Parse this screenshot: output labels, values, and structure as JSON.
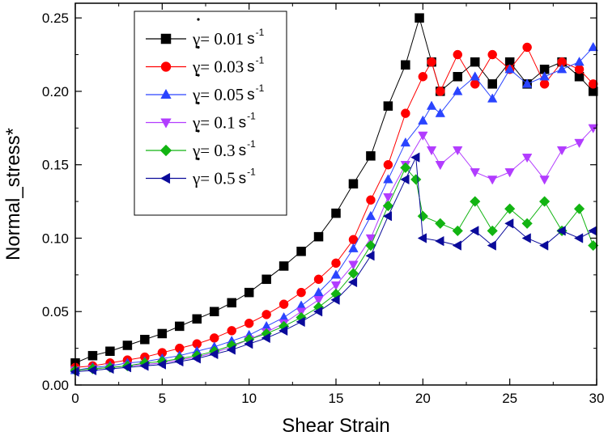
{
  "chart_data": {
    "type": "scatter",
    "xlabel": "Shear Strain",
    "ylabel": "Normal_stress*",
    "xlim": [
      0,
      30
    ],
    "ylim": [
      0,
      0.26
    ],
    "x_ticks": [
      "0",
      "5",
      "10",
      "15",
      "20",
      "25",
      "30"
    ],
    "y_ticks": [
      "0.00",
      "0.05",
      "0.10",
      "0.15",
      "0.20",
      "0.25"
    ],
    "x_tick_values": [
      0,
      5,
      10,
      15,
      20,
      25,
      30
    ],
    "y_tick_values": [
      0,
      0.05,
      0.1,
      0.15,
      0.2,
      0.25
    ],
    "legend_position": "top-left",
    "grid": false,
    "series": [
      {
        "name": "γ = 0.01 s-1",
        "rate": "0.01",
        "unit": "s",
        "exp": "-1",
        "color": "#000000",
        "marker": "square",
        "x": [
          0,
          1,
          2,
          3,
          4,
          5,
          6,
          7,
          8,
          9,
          10,
          11,
          12,
          13,
          14,
          15,
          16,
          17,
          18,
          19,
          19.8,
          20.5,
          21,
          22,
          23,
          24,
          25,
          26,
          27,
          28,
          29,
          29.8
        ],
        "y": [
          0.015,
          0.02,
          0.023,
          0.027,
          0.031,
          0.035,
          0.04,
          0.045,
          0.05,
          0.056,
          0.063,
          0.072,
          0.081,
          0.091,
          0.101,
          0.117,
          0.137,
          0.156,
          0.19,
          0.218,
          0.25,
          0.22,
          0.2,
          0.21,
          0.22,
          0.205,
          0.22,
          0.205,
          0.215,
          0.22,
          0.21,
          0.2
        ]
      },
      {
        "name": "γ = 0.03 s-1",
        "rate": "0.03",
        "unit": "s",
        "exp": "-1",
        "color": "#ff0000",
        "marker": "circle",
        "x": [
          0,
          1,
          2,
          3,
          4,
          5,
          6,
          7,
          8,
          9,
          10,
          11,
          12,
          13,
          14,
          15,
          16,
          17,
          18,
          19,
          20,
          20.5,
          21,
          22,
          23,
          24,
          25,
          26,
          27,
          28,
          29,
          29.8
        ],
        "y": [
          0.012,
          0.013,
          0.015,
          0.017,
          0.019,
          0.022,
          0.025,
          0.028,
          0.032,
          0.037,
          0.042,
          0.048,
          0.055,
          0.063,
          0.072,
          0.083,
          0.099,
          0.126,
          0.15,
          0.185,
          0.21,
          0.22,
          0.2,
          0.225,
          0.205,
          0.225,
          0.215,
          0.23,
          0.205,
          0.22,
          0.215,
          0.205
        ]
      },
      {
        "name": "γ = 0.05 s-1",
        "rate": "0.05",
        "unit": "s",
        "exp": "-1",
        "color": "#2a44ff",
        "marker": "triangle-up",
        "x": [
          0,
          1,
          2,
          3,
          4,
          5,
          6,
          7,
          8,
          9,
          10,
          11,
          12,
          13,
          14,
          15,
          16,
          17,
          18,
          19,
          20,
          20.5,
          21,
          22,
          23,
          24,
          25,
          26,
          27,
          28,
          29,
          29.8
        ],
        "y": [
          0.01,
          0.012,
          0.013,
          0.015,
          0.016,
          0.018,
          0.02,
          0.023,
          0.026,
          0.03,
          0.034,
          0.04,
          0.046,
          0.054,
          0.063,
          0.075,
          0.093,
          0.115,
          0.14,
          0.165,
          0.18,
          0.19,
          0.185,
          0.2,
          0.21,
          0.195,
          0.215,
          0.205,
          0.21,
          0.215,
          0.22,
          0.23
        ]
      },
      {
        "name": "γ = 0.1 s-1",
        "rate": "0.1",
        "unit": "s",
        "exp": "-1",
        "color": "#b23cff",
        "marker": "triangle-down",
        "x": [
          0,
          1,
          2,
          3,
          4,
          5,
          6,
          7,
          8,
          9,
          10,
          11,
          12,
          13,
          14,
          15,
          16,
          17,
          18,
          19,
          20,
          20.5,
          21,
          22,
          23,
          24,
          25,
          26,
          27,
          28,
          29,
          29.8
        ],
        "y": [
          0.01,
          0.011,
          0.012,
          0.013,
          0.014,
          0.015,
          0.017,
          0.019,
          0.022,
          0.026,
          0.031,
          0.036,
          0.042,
          0.05,
          0.058,
          0.068,
          0.082,
          0.1,
          0.128,
          0.15,
          0.17,
          0.16,
          0.15,
          0.16,
          0.145,
          0.14,
          0.145,
          0.155,
          0.14,
          0.16,
          0.165,
          0.175
        ]
      },
      {
        "name": "γ = 0.3 s-1",
        "rate": "0.3",
        "unit": "s",
        "exp": "-1",
        "color": "#12b412",
        "marker": "diamond",
        "x": [
          0,
          1,
          2,
          3,
          4,
          5,
          6,
          7,
          8,
          9,
          10,
          11,
          12,
          13,
          14,
          15,
          16,
          17,
          18,
          19,
          19.6,
          20,
          21,
          22,
          23,
          24,
          25,
          26,
          27,
          28,
          29,
          29.8
        ],
        "y": [
          0.01,
          0.011,
          0.012,
          0.013,
          0.015,
          0.016,
          0.018,
          0.02,
          0.023,
          0.027,
          0.031,
          0.035,
          0.04,
          0.046,
          0.053,
          0.062,
          0.076,
          0.095,
          0.122,
          0.148,
          0.14,
          0.115,
          0.11,
          0.105,
          0.125,
          0.105,
          0.12,
          0.11,
          0.125,
          0.105,
          0.12,
          0.095
        ]
      },
      {
        "name": "γ = 0.5 s-1",
        "rate": "0.5",
        "unit": "s",
        "exp": "-1",
        "color": "#0a0a9a",
        "marker": "triangle-left",
        "x": [
          0,
          1,
          2,
          3,
          4,
          5,
          6,
          7,
          8,
          9,
          10,
          11,
          12,
          13,
          14,
          15,
          16,
          17,
          18,
          19,
          19.6,
          20,
          21,
          22,
          23,
          24,
          25,
          26,
          27,
          28,
          29,
          29.8
        ],
        "y": [
          0.009,
          0.01,
          0.011,
          0.012,
          0.013,
          0.014,
          0.016,
          0.018,
          0.021,
          0.024,
          0.028,
          0.032,
          0.037,
          0.043,
          0.05,
          0.058,
          0.07,
          0.088,
          0.115,
          0.14,
          0.155,
          0.1,
          0.098,
          0.095,
          0.105,
          0.095,
          0.11,
          0.1,
          0.095,
          0.105,
          0.1,
          0.105
        ]
      }
    ]
  }
}
